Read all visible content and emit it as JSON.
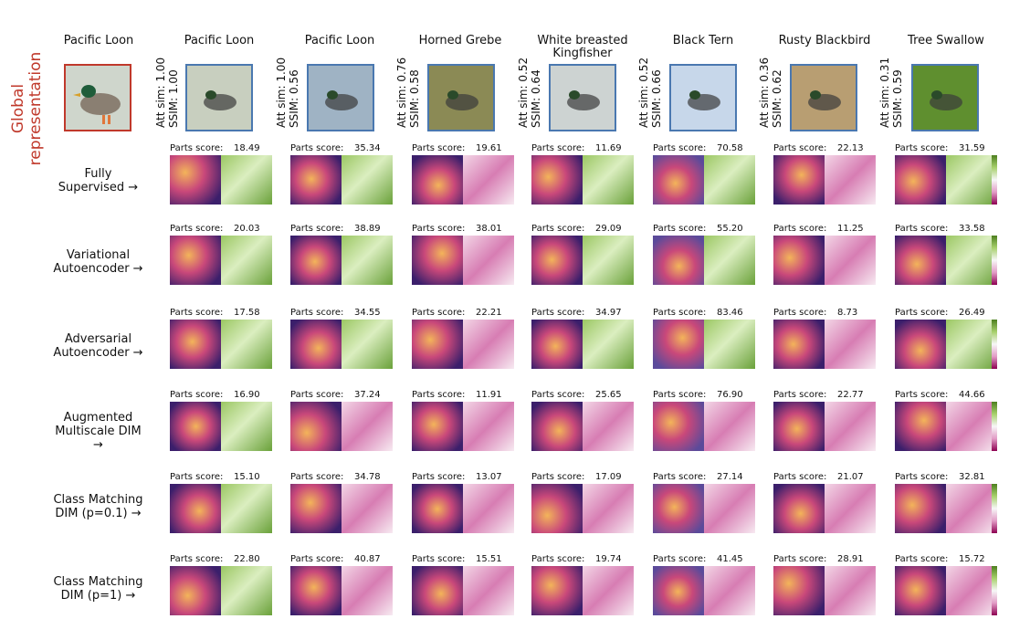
{
  "global_label": "Global representation",
  "query": {
    "title": "Pacific Loon"
  },
  "columns": [
    {
      "title": "Pacific Loon",
      "att_sim": "Att sim: 1.00",
      "ssim": "SSIM: 1.00"
    },
    {
      "title": "Pacific Loon",
      "att_sim": "Att sim: 1.00",
      "ssim": "SSIM: 0.56"
    },
    {
      "title": "Horned Grebe",
      "att_sim": "Att sim: 0.76",
      "ssim": "SSIM: 0.58"
    },
    {
      "title": "White breasted Kingfisher",
      "att_sim": "Att sim: 0.52",
      "ssim": "SSIM: 0.64"
    },
    {
      "title": "Black Tern",
      "att_sim": "Att sim: 0.52",
      "ssim": "SSIM: 0.66"
    },
    {
      "title": "Rusty Blackbird",
      "att_sim": "Att sim: 0.36",
      "ssim": "SSIM: 0.62"
    },
    {
      "title": "Tree Swallow",
      "att_sim": "Att sim: 0.31",
      "ssim": "SSIM: 0.59"
    }
  ],
  "parts_label": "Parts score:",
  "rows": [
    {
      "label": "Fully Supervised",
      "scores": [
        "18.49",
        "35.34",
        "19.61",
        "11.69",
        "70.58",
        "22.13",
        "31.59"
      ]
    },
    {
      "label": "Variational Autoencoder",
      "scores": [
        "20.03",
        "38.89",
        "38.01",
        "29.09",
        "55.20",
        "11.25",
        "33.58"
      ]
    },
    {
      "label": "Adversarial Autoencoder",
      "scores": [
        "17.58",
        "34.55",
        "22.21",
        "34.97",
        "83.46",
        "8.73",
        "26.49"
      ]
    },
    {
      "label": "Augmented Multiscale DIM",
      "scores": [
        "16.90",
        "37.24",
        "11.91",
        "25.65",
        "76.90",
        "22.77",
        "44.66"
      ]
    },
    {
      "label": "Class Matching DIM (p=0.1)",
      "scores": [
        "15.10",
        "34.78",
        "13.07",
        "17.09",
        "27.14",
        "21.07",
        "32.81"
      ]
    },
    {
      "label": "Class Matching DIM (p=1)",
      "scores": [
        "22.80",
        "40.87",
        "15.51",
        "19.74",
        "41.45",
        "28.91",
        "15.72"
      ]
    }
  ],
  "colors": {
    "query_border": "#c0392b",
    "thumb_border": "#4a78b0",
    "heat_dark": "#3b1f6b",
    "heat_mid": "#c9487a",
    "heat_light": "#f3b45a",
    "div_green": "#6aa13a",
    "div_pink": "#c5508f"
  }
}
